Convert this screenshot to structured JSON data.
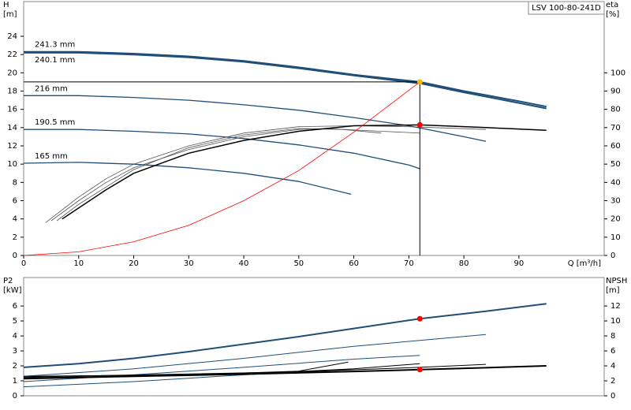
{
  "chart_data": [
    {
      "type": "line",
      "title": "LSV 100-80-241D",
      "ylabel": "H",
      "yunit": "[m]",
      "y2label": "eta",
      "y2unit": "[%]",
      "xlabel": "Q [m³/h]",
      "xlim": [
        0,
        105.5
      ],
      "xticks": [
        0,
        10,
        20,
        30,
        40,
        50,
        60,
        70,
        80,
        90
      ],
      "ylim": [
        0,
        27.8
      ],
      "yticks": [
        0,
        2,
        4,
        6,
        8,
        10,
        12,
        14,
        16,
        18,
        20,
        22,
        24
      ],
      "y2lim": [
        0,
        139
      ],
      "y2ticks": [
        0,
        10,
        20,
        30,
        40,
        50,
        60,
        70,
        80,
        90,
        100
      ],
      "series": [
        {
          "name": "241.3 mm",
          "color": "#1f4e79",
          "width": 2,
          "x": [
            0,
            10,
            20,
            30,
            40,
            50,
            60,
            72,
            80,
            90,
            95
          ],
          "values": [
            22.3,
            22.3,
            22.1,
            21.8,
            21.3,
            20.6,
            19.8,
            19.0,
            18.0,
            16.9,
            16.3
          ]
        },
        {
          "name": "240.1 mm",
          "color": "#1f4e79",
          "width": 2,
          "x": [
            0,
            10,
            20,
            30,
            40,
            50,
            60,
            72,
            80,
            90,
            95
          ],
          "values": [
            22.2,
            22.2,
            22.0,
            21.7,
            21.2,
            20.5,
            19.7,
            18.85,
            17.85,
            16.7,
            16.1
          ]
        },
        {
          "name": "216 mm",
          "color": "#1f4e79",
          "width": 1.3,
          "x": [
            0,
            10,
            20,
            30,
            40,
            50,
            60,
            70,
            80,
            84
          ],
          "values": [
            17.5,
            17.5,
            17.3,
            17.0,
            16.5,
            15.9,
            15.1,
            14.2,
            13.0,
            12.5
          ]
        },
        {
          "name": "190.5 mm",
          "color": "#1f4e79",
          "width": 1.3,
          "x": [
            0,
            10,
            20,
            30,
            40,
            50,
            60,
            70,
            72
          ],
          "values": [
            13.8,
            13.8,
            13.6,
            13.3,
            12.8,
            12.1,
            11.2,
            9.9,
            9.5
          ]
        },
        {
          "name": "165 mm",
          "color": "#1f4e79",
          "width": 1.3,
          "x": [
            0,
            10,
            20,
            30,
            40,
            50,
            59.5
          ],
          "values": [
            10.1,
            10.2,
            10.0,
            9.6,
            9.0,
            8.1,
            6.7
          ]
        },
        {
          "axis": "y2",
          "color": "#555555",
          "width": 0.8,
          "x": [
            5,
            10,
            15,
            20,
            30,
            40,
            50,
            55,
            65,
            72
          ],
          "values": [
            19,
            30,
            40,
            48,
            58,
            65,
            69,
            69.5,
            68,
            67
          ]
        },
        {
          "axis": "y2",
          "color": "#555555",
          "width": 0.8,
          "x": [
            4,
            10,
            15,
            20,
            30,
            40,
            50,
            60,
            70,
            84
          ],
          "values": [
            18,
            32,
            42,
            50,
            60,
            67,
            70.5,
            71,
            70.5,
            69
          ]
        },
        {
          "axis": "y2",
          "color": "#555555",
          "width": 0.8,
          "x": [
            6,
            10,
            20,
            30,
            40,
            50,
            58,
            65
          ],
          "values": [
            19,
            28,
            47,
            59,
            66,
            69.5,
            69,
            67
          ]
        },
        {
          "axis": "y2",
          "color": "#000000",
          "width": 1.5,
          "x": [
            7,
            10,
            15,
            20,
            30,
            40,
            50,
            60,
            72,
            84,
            95
          ],
          "values": [
            20,
            26,
            36,
            45,
            56,
            63,
            68,
            71,
            71.5,
            70,
            68.5
          ]
        },
        {
          "color": "#ff0000",
          "width": 0.8,
          "x": [
            0,
            10,
            20,
            30,
            40,
            50,
            60,
            72
          ],
          "values": [
            0,
            0.4,
            1.5,
            3.3,
            6.0,
            9.3,
            13.5,
            19.0
          ]
        },
        {
          "color": "#000000",
          "width": 1,
          "x": [
            0,
            72
          ],
          "values": [
            19.0,
            19.0
          ]
        },
        {
          "color": "#000000",
          "width": 1,
          "x": [
            72,
            72
          ],
          "values": [
            19.0,
            0
          ]
        },
        {
          "marker": true,
          "color": "#f5b800",
          "x": [
            72
          ],
          "values": [
            19.0
          ]
        },
        {
          "marker": true,
          "axis": "y2",
          "color": "#ff0000",
          "x": [
            72
          ],
          "values": [
            71.5
          ]
        }
      ]
    },
    {
      "type": "line",
      "ylabel": "P2",
      "yunit": "[kW]",
      "y2label": "NPSH",
      "y2unit": "[m]",
      "xlim": [
        0,
        105.5
      ],
      "ylim": [
        0,
        7.9
      ],
      "yticks": [
        0,
        1,
        2,
        3,
        4,
        5,
        6
      ],
      "y2lim": [
        0,
        15.8
      ],
      "y2ticks": [
        0,
        2,
        4,
        6,
        8,
        10,
        12
      ],
      "series": [
        {
          "color": "#1f4e79",
          "width": 2,
          "x": [
            0,
            10,
            20,
            30,
            40,
            50,
            60,
            72,
            84,
            95
          ],
          "values": [
            1.9,
            2.15,
            2.5,
            2.95,
            3.45,
            3.95,
            4.5,
            5.15,
            5.65,
            6.15
          ]
        },
        {
          "color": "#1f4e79",
          "width": 1,
          "x": [
            0,
            20,
            40,
            60,
            72,
            84
          ],
          "values": [
            1.3,
            1.8,
            2.5,
            3.3,
            3.7,
            4.1
          ]
        },
        {
          "color": "#1f4e79",
          "width": 1,
          "x": [
            0,
            20,
            40,
            60,
            72
          ],
          "values": [
            0.95,
            1.4,
            1.9,
            2.45,
            2.7
          ]
        },
        {
          "color": "#1f4e79",
          "width": 1,
          "x": [
            0,
            20,
            40,
            59.5
          ],
          "values": [
            0.6,
            0.95,
            1.4,
            1.75
          ]
        },
        {
          "axis": "y2",
          "color": "#000000",
          "width": 2,
          "x": [
            0,
            20,
            40,
            60,
            72,
            84,
            95
          ],
          "values": [
            2.3,
            2.6,
            2.9,
            3.25,
            3.5,
            3.75,
            4.0
          ]
        },
        {
          "axis": "y2",
          "color": "#000000",
          "width": 1,
          "x": [
            0,
            30,
            50,
            59
          ],
          "values": [
            2.6,
            2.8,
            3.3,
            4.5
          ]
        },
        {
          "axis": "y2",
          "color": "#000000",
          "width": 1,
          "x": [
            0,
            40,
            60,
            72
          ],
          "values": [
            2.4,
            2.9,
            3.6,
            4.3
          ]
        },
        {
          "axis": "y2",
          "color": "#000000",
          "width": 1,
          "x": [
            0,
            50,
            72,
            84
          ],
          "values": [
            2.5,
            3.2,
            3.8,
            4.2
          ]
        },
        {
          "marker": true,
          "color": "#ff0000",
          "x": [
            72
          ],
          "values": [
            5.15
          ]
        },
        {
          "marker": true,
          "axis": "y2",
          "color": "#ff0000",
          "x": [
            72
          ],
          "values": [
            3.5
          ]
        }
      ]
    }
  ]
}
